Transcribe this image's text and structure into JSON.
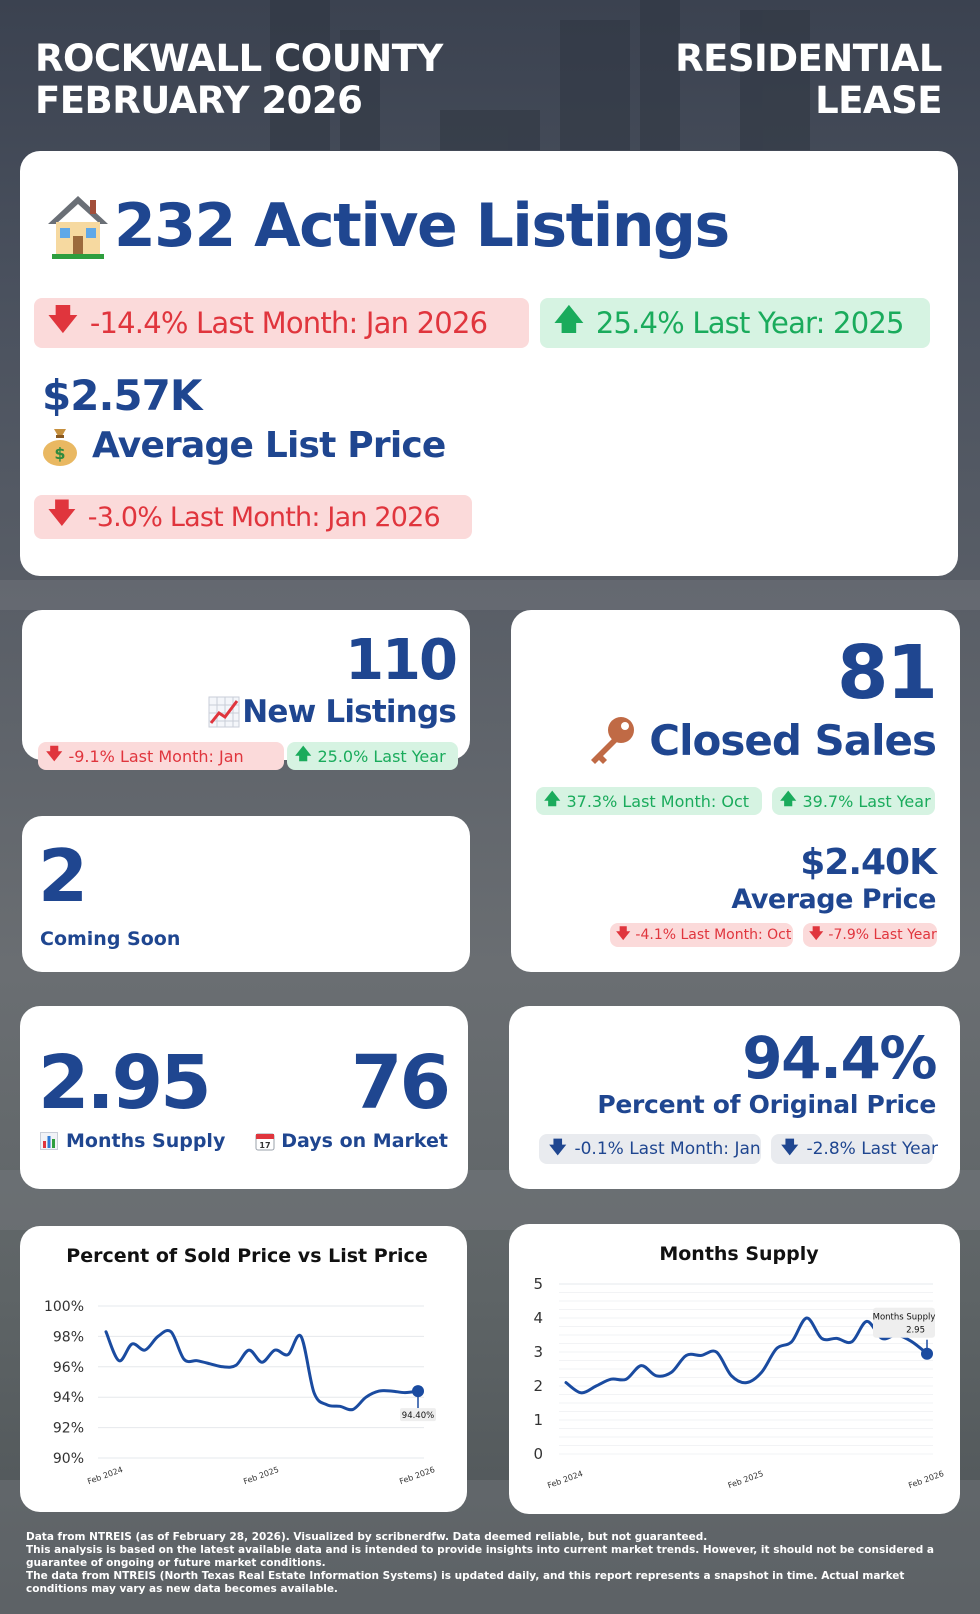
{
  "header": {
    "county_line1": "ROCKWALL COUNTY",
    "county_line2": "FEBRUARY 2026",
    "type_line1": "RESIDENTIAL",
    "type_line2": "LEASE"
  },
  "active_listings": {
    "value_text": "232 Active Listings",
    "icon": "house-icon",
    "mom": "-14.4% Last Month: Jan 2026",
    "yoy": "25.4% Last Year: 2025"
  },
  "avg_list_price": {
    "value": "$2.57K",
    "label": "Average List Price",
    "icon": "money-bag-icon",
    "mom": "-3.0% Last Month: Jan 2026"
  },
  "new_listings": {
    "value": "110",
    "label": "New Listings",
    "icon": "chart-increasing-icon",
    "mom": "-9.1% Last Month: Jan",
    "yoy": "25.0% Last Year"
  },
  "closed_sales": {
    "value": "81",
    "label": "Closed Sales",
    "icon": "key-icon",
    "mom": "37.3% Last Month: Oct",
    "yoy": "39.7% Last Year",
    "avg_price_value": "$2.40K",
    "avg_price_label": "Average Price",
    "avg_price_mom": "-4.1% Last Month: Oct",
    "avg_price_yoy": "-7.9% Last Year"
  },
  "coming_soon": {
    "value": "2",
    "label": "Coming Soon"
  },
  "months_supply": {
    "value": "2.95",
    "label": "Months Supply",
    "icon": "bar-chart-icon"
  },
  "days_on_market": {
    "value": "76",
    "label": "Days on Market",
    "icon": "calendar-icon"
  },
  "pct_original": {
    "value": "94.4%",
    "label": "Percent of Original Price",
    "mom": "-0.1% Last Month: Jan",
    "yoy": "-2.8% Last Year"
  },
  "footer": {
    "line1": "Data from NTREIS (as of February 28, 2026). Visualized by scribnerdfw. Data deemed reliable, but not guaranteed.",
    "line2": "This analysis is based on the latest available data and is intended to provide insights into current market trends. However, it should not be considered a guarantee of ongoing or future market conditions.",
    "line3": "The data from NTREIS (North Texas Real Estate Information Systems) is updated daily, and this report represents a snapshot in time. Actual market conditions may vary as new data becomes available."
  },
  "colors": {
    "brand_blue": "#1f4690",
    "down_red": "#e0353d",
    "up_green": "#1aab5c",
    "line_blue": "#1a4ba0"
  },
  "chart_data": [
    {
      "type": "line",
      "title": "Percent of Sold Price vs List Price",
      "ylim": [
        90,
        100
      ],
      "y_ticks": [
        "90%",
        "92%",
        "94%",
        "96%",
        "98%",
        "100%"
      ],
      "x_tick_labels": [
        "Feb 2024",
        "Feb 2025",
        "Feb 2026"
      ],
      "x": [
        "2024-02",
        "2024-03",
        "2024-04",
        "2024-05",
        "2024-06",
        "2024-07",
        "2024-08",
        "2024-09",
        "2024-10",
        "2024-11",
        "2024-12",
        "2025-01",
        "2025-02",
        "2025-03",
        "2025-04",
        "2025-05",
        "2025-06",
        "2025-07",
        "2025-08",
        "2025-09",
        "2025-10",
        "2025-11",
        "2025-12",
        "2026-01",
        "2026-02"
      ],
      "values": [
        98.3,
        96.4,
        97.5,
        97.1,
        98.0,
        98.3,
        96.5,
        96.4,
        96.2,
        96.0,
        96.1,
        97.1,
        96.3,
        97.1,
        96.8,
        98.0,
        94.3,
        93.5,
        93.4,
        93.2,
        94.0,
        94.4,
        94.4,
        94.3,
        94.4
      ],
      "annotation": "94.40%",
      "grid": true
    },
    {
      "type": "line",
      "title": "Months Supply",
      "ylim": [
        0,
        5
      ],
      "y_ticks": [
        "0",
        "1",
        "2",
        "3",
        "4",
        "5"
      ],
      "x_tick_labels": [
        "Feb 2024",
        "Feb 2025",
        "Feb 2026"
      ],
      "x": [
        "2024-02",
        "2024-03",
        "2024-04",
        "2024-05",
        "2024-06",
        "2024-07",
        "2024-08",
        "2024-09",
        "2024-10",
        "2024-11",
        "2024-12",
        "2025-01",
        "2025-02",
        "2025-03",
        "2025-04",
        "2025-05",
        "2025-06",
        "2025-07",
        "2025-08",
        "2025-09",
        "2025-10",
        "2025-11",
        "2025-12",
        "2026-01",
        "2026-02"
      ],
      "values": [
        2.1,
        1.8,
        2.0,
        2.2,
        2.2,
        2.6,
        2.3,
        2.4,
        2.9,
        2.9,
        3.0,
        2.3,
        2.1,
        2.4,
        3.1,
        3.3,
        4.0,
        3.4,
        3.4,
        3.3,
        3.9,
        3.4,
        3.5,
        3.3,
        2.95
      ],
      "annotation_label": "Months Supply",
      "annotation_value": "2.95",
      "grid": true
    }
  ]
}
